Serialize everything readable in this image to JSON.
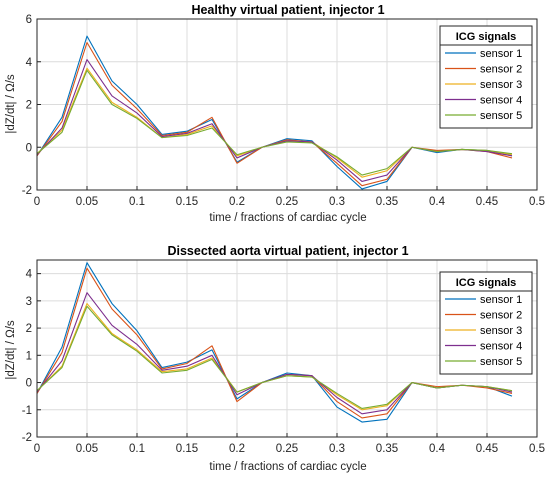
{
  "chart_data": [
    {
      "type": "line",
      "title": "Healthy virtual patient, injector 1",
      "xlabel": "time / fractions of cardiac cycle",
      "ylabel": "|dZ/dt| / Ω/s",
      "xlim": [
        0,
        0.5
      ],
      "ylim": [
        -2,
        6
      ],
      "xticks": [
        "0",
        "0.05",
        "0.1",
        "0.15",
        "0.2",
        "0.25",
        "0.3",
        "0.35",
        "0.4",
        "0.45",
        "0.5"
      ],
      "yticks": [
        "-2",
        "0",
        "2",
        "4",
        "6"
      ],
      "grid": true,
      "legend": {
        "title": "ICG signals",
        "placement": "top-right"
      },
      "x": [
        0,
        0.025,
        0.05,
        0.075,
        0.1,
        0.125,
        0.15,
        0.175,
        0.2,
        0.225,
        0.25,
        0.275,
        0.3,
        0.325,
        0.35,
        0.375,
        0.4,
        0.425,
        0.45,
        0.475
      ],
      "series": [
        {
          "name": "sensor 1",
          "color": "#0072BD",
          "values": [
            -0.4,
            1.4,
            5.2,
            3.1,
            2.0,
            0.6,
            0.75,
            1.3,
            -0.7,
            0.0,
            0.4,
            0.3,
            -0.9,
            -1.95,
            -1.6,
            0.0,
            -0.25,
            -0.1,
            -0.15,
            -0.4
          ]
        },
        {
          "name": "sensor 2",
          "color": "#D95319",
          "values": [
            -0.4,
            1.2,
            4.9,
            2.9,
            1.8,
            0.55,
            0.7,
            1.4,
            -0.75,
            0.0,
            0.35,
            0.25,
            -0.75,
            -1.8,
            -1.5,
            0.0,
            -0.15,
            -0.1,
            -0.2,
            -0.5
          ]
        },
        {
          "name": "sensor 3",
          "color": "#EDB120",
          "values": [
            -0.3,
            0.8,
            3.7,
            2.1,
            1.4,
            0.45,
            0.6,
            1.0,
            -0.4,
            0.0,
            0.3,
            0.25,
            -0.5,
            -1.4,
            -1.1,
            0.0,
            -0.2,
            -0.1,
            -0.15,
            -0.35
          ]
        },
        {
          "name": "sensor 4",
          "color": "#7E2F8E",
          "values": [
            -0.35,
            0.9,
            4.1,
            2.4,
            1.6,
            0.5,
            0.65,
            1.1,
            -0.5,
            0.0,
            0.3,
            0.25,
            -0.6,
            -1.6,
            -1.3,
            0.0,
            -0.2,
            -0.1,
            -0.2,
            -0.4
          ]
        },
        {
          "name": "sensor 5",
          "color": "#77AC30",
          "values": [
            -0.3,
            0.7,
            3.6,
            2.0,
            1.35,
            0.45,
            0.55,
            0.9,
            -0.35,
            0.0,
            0.25,
            0.2,
            -0.45,
            -1.3,
            -1.0,
            0.0,
            -0.2,
            -0.1,
            -0.15,
            -0.3
          ]
        }
      ]
    },
    {
      "type": "line",
      "title": "Dissected aorta virtual patient, injector 1",
      "xlabel": "time / fractions of cardiac cycle",
      "ylabel": "|dZ/dt| / Ω/s",
      "xlim": [
        0,
        0.5
      ],
      "ylim": [
        -2,
        4.5
      ],
      "xticks": [
        "0",
        "0.05",
        "0.1",
        "0.15",
        "0.2",
        "0.25",
        "0.3",
        "0.35",
        "0.4",
        "0.45",
        "0.5"
      ],
      "yticks": [
        "-2",
        "-1",
        "0",
        "1",
        "2",
        "3",
        "4"
      ],
      "grid": true,
      "legend": {
        "title": "ICG signals",
        "placement": "top-right"
      },
      "x": [
        0,
        0.025,
        0.05,
        0.075,
        0.1,
        0.125,
        0.15,
        0.175,
        0.2,
        0.225,
        0.25,
        0.275,
        0.3,
        0.325,
        0.35,
        0.375,
        0.4,
        0.425,
        0.45,
        0.475
      ],
      "series": [
        {
          "name": "sensor 1",
          "color": "#0072BD",
          "values": [
            -0.4,
            1.3,
            4.4,
            2.9,
            1.9,
            0.55,
            0.75,
            1.2,
            -0.6,
            0.0,
            0.35,
            0.25,
            -0.9,
            -1.45,
            -1.35,
            0.0,
            -0.2,
            -0.1,
            -0.15,
            -0.5
          ]
        },
        {
          "name": "sensor 2",
          "color": "#D95319",
          "values": [
            -0.4,
            1.1,
            4.2,
            2.7,
            1.75,
            0.5,
            0.7,
            1.35,
            -0.7,
            0.0,
            0.3,
            0.25,
            -0.7,
            -1.3,
            -1.15,
            0.0,
            -0.15,
            -0.1,
            -0.2,
            -0.4
          ]
        },
        {
          "name": "sensor 3",
          "color": "#EDB120",
          "values": [
            -0.3,
            0.6,
            2.9,
            1.8,
            1.2,
            0.4,
            0.5,
            0.9,
            -0.35,
            0.0,
            0.25,
            0.2,
            -0.45,
            -1.0,
            -0.85,
            0.0,
            -0.2,
            -0.1,
            -0.15,
            -0.3
          ]
        },
        {
          "name": "sensor 4",
          "color": "#7E2F8E",
          "values": [
            -0.35,
            0.8,
            3.3,
            2.1,
            1.4,
            0.45,
            0.6,
            1.0,
            -0.45,
            0.0,
            0.3,
            0.25,
            -0.55,
            -1.15,
            -1.0,
            0.0,
            -0.2,
            -0.1,
            -0.15,
            -0.35
          ]
        },
        {
          "name": "sensor 5",
          "color": "#77AC30",
          "values": [
            -0.3,
            0.55,
            2.8,
            1.75,
            1.15,
            0.35,
            0.45,
            0.85,
            -0.35,
            0.0,
            0.25,
            0.2,
            -0.4,
            -0.95,
            -0.8,
            0.0,
            -0.2,
            -0.1,
            -0.15,
            -0.3
          ]
        }
      ]
    }
  ]
}
